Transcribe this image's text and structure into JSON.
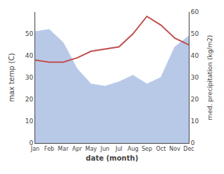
{
  "chart_data": {
    "type": "line",
    "xlabel": "date (month)",
    "ylabel": "max temp (C)",
    "y2label": "med. precipitation (kg/m2)",
    "categories": [
      "Jan",
      "Feb",
      "Mar",
      "Apr",
      "May",
      "Jun",
      "Jul",
      "Aug",
      "Sep",
      "Oct",
      "Nov",
      "Dec"
    ],
    "series": [
      {
        "type": "area",
        "color": "#b8c9e8",
        "values": [
          51,
          52,
          46,
          34,
          27,
          26,
          28,
          31,
          27,
          30,
          44,
          49
        ]
      },
      {
        "type": "line",
        "color": "#c0504d",
        "axis": "y2",
        "values": [
          38,
          37,
          37,
          39,
          42,
          43,
          44,
          50,
          58,
          54,
          48,
          45
        ]
      }
    ],
    "ylim": [
      0,
      60
    ],
    "yticks": [
      0,
      10,
      20,
      30,
      40,
      50
    ],
    "y2lim": [
      0,
      60
    ],
    "y2ticks": [
      0,
      10,
      20,
      30,
      40,
      50,
      60
    ],
    "grid": false
  }
}
